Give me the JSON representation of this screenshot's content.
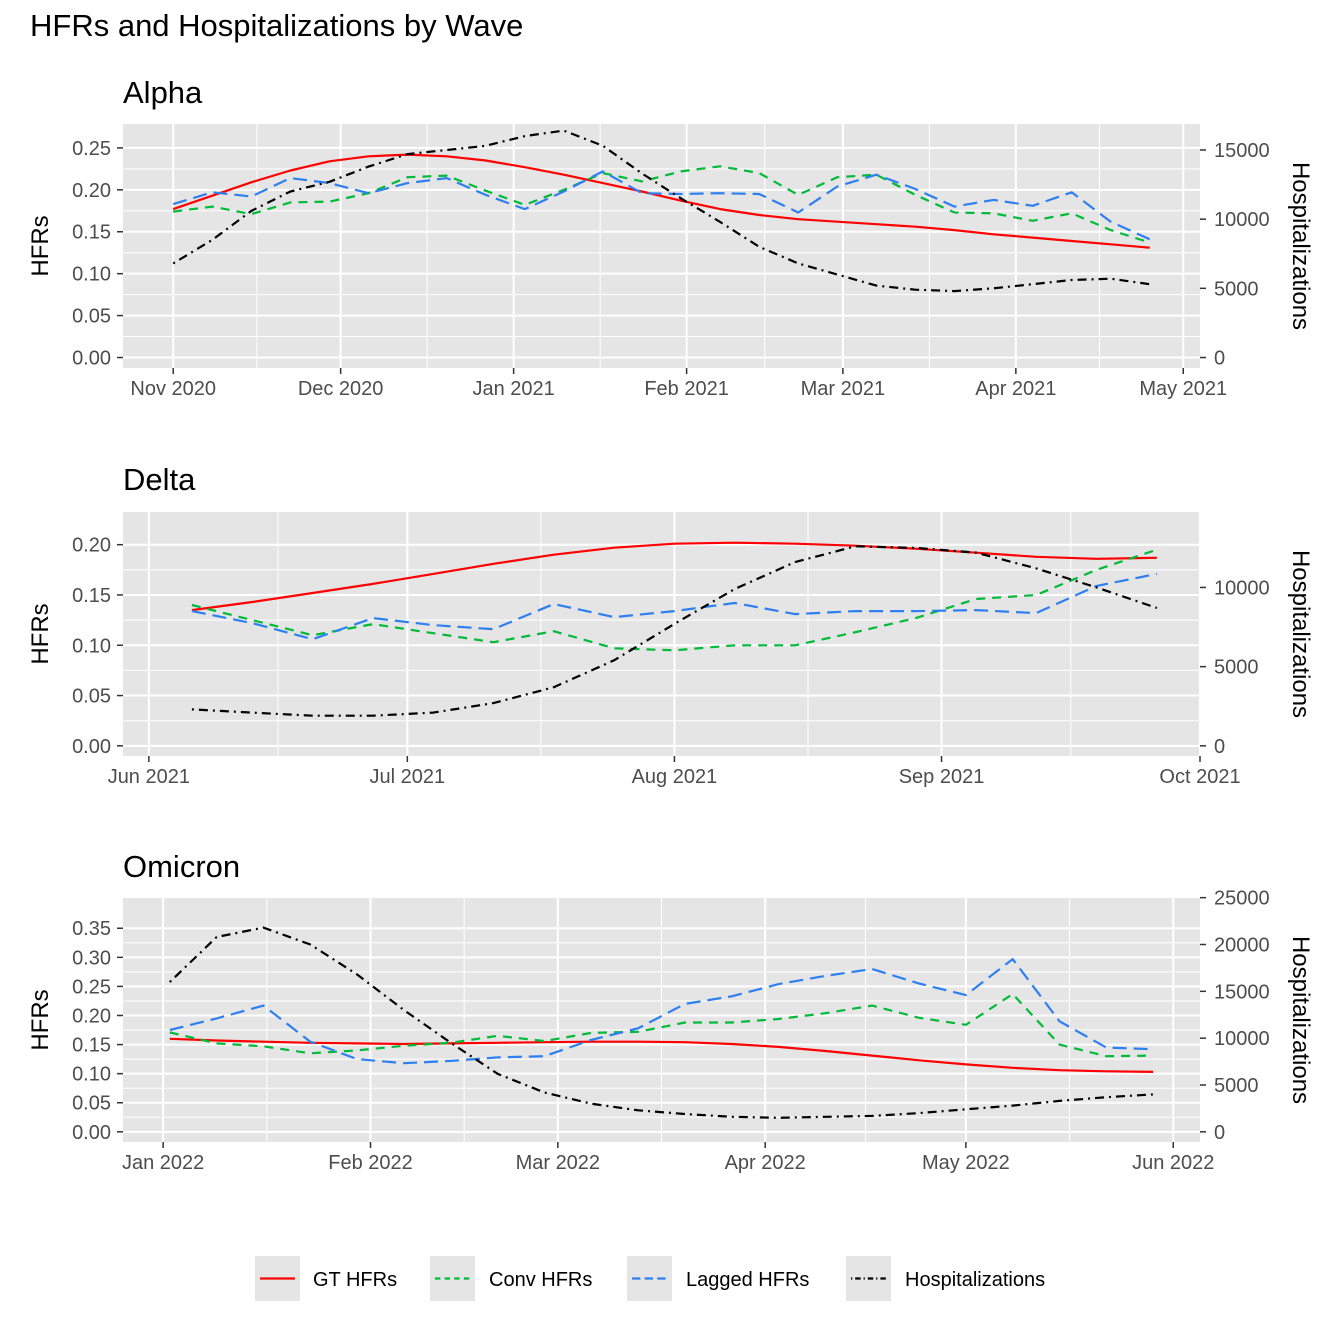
{
  "figure": {
    "title": "HFRs and Hospitalizations by Wave"
  },
  "chart_data": [
    {
      "type": "line",
      "title": "Alpha",
      "ylabel": "HFRs",
      "y2label": "Hospitalizations",
      "xlim": [
        "2020-10-23",
        "2021-05-04"
      ],
      "x_ticks": [
        {
          "date": "2020-11-01",
          "label": "Nov 2020"
        },
        {
          "date": "2020-12-01",
          "label": "Dec 2020"
        },
        {
          "date": "2021-01-01",
          "label": "Jan 2021"
        },
        {
          "date": "2021-02-01",
          "label": "Feb 2021"
        },
        {
          "date": "2021-03-01",
          "label": "Mar 2021"
        },
        {
          "date": "2021-04-01",
          "label": "Apr 2021"
        },
        {
          "date": "2021-05-01",
          "label": "May 2021"
        }
      ],
      "ylim": [
        -0.0125,
        0.2785
      ],
      "y_ticks": [
        {
          "value": 0,
          "label": "0.00"
        },
        {
          "value": 0.05,
          "label": "0.05"
        },
        {
          "value": 0.1,
          "label": "0.10"
        },
        {
          "value": 0.15,
          "label": "0.15"
        },
        {
          "value": 0.2,
          "label": "0.20"
        },
        {
          "value": 0.25,
          "label": "0.25"
        }
      ],
      "y2_per_y": 60600,
      "y2_ticks": [
        {
          "value": 0,
          "label": "0"
        },
        {
          "value": 5000,
          "label": "5000"
        },
        {
          "value": 10000,
          "label": "10000"
        },
        {
          "value": 15000,
          "label": "15000"
        }
      ],
      "series": [
        {
          "name": "GT HFRs",
          "axis": "left",
          "color": "#ff0000",
          "dash": "",
          "x": [
            "2020-11-01",
            "2020-11-08",
            "2020-11-15",
            "2020-11-22",
            "2020-11-29",
            "2020-12-06",
            "2020-12-13",
            "2020-12-20",
            "2020-12-27",
            "2021-01-03",
            "2021-01-10",
            "2021-01-17",
            "2021-01-24",
            "2021-01-31",
            "2021-02-07",
            "2021-02-14",
            "2021-02-21",
            "2021-02-28",
            "2021-03-07",
            "2021-03-14",
            "2021-03-21",
            "2021-03-28",
            "2021-04-04",
            "2021-04-11",
            "2021-04-18",
            "2021-04-25"
          ],
          "y": [
            0.177,
            0.193,
            0.209,
            0.223,
            0.234,
            0.24,
            0.242,
            0.24,
            0.235,
            0.227,
            0.218,
            0.208,
            0.198,
            0.187,
            0.177,
            0.17,
            0.165,
            0.162,
            0.159,
            0.156,
            0.152,
            0.147,
            0.143,
            0.139,
            0.135,
            0.131
          ]
        },
        {
          "name": "Conv HFRs",
          "axis": "left",
          "color": "#00ba38",
          "dash": "9 7",
          "x": [
            "2020-11-01",
            "2020-11-08",
            "2020-11-15",
            "2020-11-22",
            "2020-11-29",
            "2020-12-06",
            "2020-12-13",
            "2020-12-20",
            "2020-12-27",
            "2021-01-03",
            "2021-01-10",
            "2021-01-17",
            "2021-01-24",
            "2021-01-31",
            "2021-02-07",
            "2021-02-14",
            "2021-02-21",
            "2021-02-28",
            "2021-03-07",
            "2021-03-14",
            "2021-03-21",
            "2021-03-28",
            "2021-04-04",
            "2021-04-11",
            "2021-04-18",
            "2021-04-25"
          ],
          "y": [
            0.174,
            0.18,
            0.171,
            0.185,
            0.186,
            0.196,
            0.215,
            0.217,
            0.199,
            0.182,
            0.2,
            0.22,
            0.21,
            0.222,
            0.228,
            0.22,
            0.194,
            0.215,
            0.218,
            0.194,
            0.173,
            0.172,
            0.163,
            0.172,
            0.152,
            0.137
          ]
        },
        {
          "name": "Lagged HFRs",
          "axis": "left",
          "color": "#2e7ff0",
          "dash": "14 7",
          "x": [
            "2020-11-01",
            "2020-11-08",
            "2020-11-15",
            "2020-11-22",
            "2020-11-29",
            "2020-12-06",
            "2020-12-13",
            "2020-12-20",
            "2020-12-27",
            "2021-01-03",
            "2021-01-10",
            "2021-01-17",
            "2021-01-24",
            "2021-01-31",
            "2021-02-07",
            "2021-02-14",
            "2021-02-21",
            "2021-02-28",
            "2021-03-07",
            "2021-03-14",
            "2021-03-21",
            "2021-03-28",
            "2021-04-04",
            "2021-04-11",
            "2021-04-18",
            "2021-04-25"
          ],
          "y": [
            0.183,
            0.197,
            0.192,
            0.214,
            0.208,
            0.196,
            0.208,
            0.214,
            0.194,
            0.177,
            0.198,
            0.222,
            0.196,
            0.195,
            0.196,
            0.195,
            0.173,
            0.204,
            0.218,
            0.201,
            0.18,
            0.188,
            0.181,
            0.197,
            0.162,
            0.141
          ]
        },
        {
          "name": "Hospitalizations",
          "axis": "right",
          "color": "#000000",
          "dash": "2 5 9 5",
          "x": [
            "2020-11-01",
            "2020-11-08",
            "2020-11-15",
            "2020-11-22",
            "2020-11-29",
            "2020-12-06",
            "2020-12-13",
            "2020-12-20",
            "2020-12-27",
            "2021-01-03",
            "2021-01-10",
            "2021-01-17",
            "2021-01-24",
            "2021-01-31",
            "2021-02-07",
            "2021-02-14",
            "2021-02-21",
            "2021-02-28",
            "2021-03-07",
            "2021-03-14",
            "2021-03-21",
            "2021-03-28",
            "2021-04-04",
            "2021-04-11",
            "2021-04-18",
            "2021-04-25"
          ],
          "y": [
            6800,
            8500,
            10600,
            12000,
            12700,
            13800,
            14700,
            15000,
            15300,
            16000,
            16400,
            15300,
            13300,
            11500,
            9800,
            8000,
            6800,
            6000,
            5200,
            4900,
            4800,
            5000,
            5300,
            5600,
            5700,
            5300
          ]
        }
      ]
    },
    {
      "type": "line",
      "title": "Delta",
      "ylabel": "HFRs",
      "y2label": "Hospitalizations",
      "xlim": [
        "2021-05-29",
        "2021-10-01"
      ],
      "x_ticks": [
        {
          "date": "2021-06-01",
          "label": "Jun 2021"
        },
        {
          "date": "2021-07-01",
          "label": "Jul 2021"
        },
        {
          "date": "2021-08-01",
          "label": "Aug 2021"
        },
        {
          "date": "2021-09-01",
          "label": "Sep 2021"
        },
        {
          "date": "2021-10-01",
          "label": "Oct 2021"
        }
      ],
      "ylim": [
        -0.0101,
        0.2325
      ],
      "y_ticks": [
        {
          "value": 0,
          "label": "0.00"
        },
        {
          "value": 0.05,
          "label": "0.05"
        },
        {
          "value": 0.1,
          "label": "0.10"
        },
        {
          "value": 0.15,
          "label": "0.15"
        },
        {
          "value": 0.2,
          "label": "0.20"
        }
      ],
      "y2_per_y": 63500,
      "y2_ticks": [
        {
          "value": 0,
          "label": "0"
        },
        {
          "value": 5000,
          "label": "5000"
        },
        {
          "value": 10000,
          "label": "10000"
        }
      ],
      "series": [
        {
          "name": "GT HFRs",
          "axis": "left",
          "color": "#ff0000",
          "dash": "",
          "x": [
            "2021-06-06",
            "2021-06-13",
            "2021-06-20",
            "2021-06-27",
            "2021-07-04",
            "2021-07-11",
            "2021-07-18",
            "2021-07-25",
            "2021-08-01",
            "2021-08-08",
            "2021-08-15",
            "2021-08-22",
            "2021-08-29",
            "2021-09-05",
            "2021-09-12",
            "2021-09-19",
            "2021-09-26"
          ],
          "y": [
            0.135,
            0.143,
            0.152,
            0.161,
            0.171,
            0.181,
            0.19,
            0.197,
            0.201,
            0.202,
            0.201,
            0.199,
            0.196,
            0.192,
            0.188,
            0.186,
            0.187
          ]
        },
        {
          "name": "Conv HFRs",
          "axis": "left",
          "color": "#00ba38",
          "dash": "9 7",
          "x": [
            "2021-06-06",
            "2021-06-13",
            "2021-06-20",
            "2021-06-27",
            "2021-07-04",
            "2021-07-11",
            "2021-07-18",
            "2021-07-25",
            "2021-08-01",
            "2021-08-08",
            "2021-08-15",
            "2021-08-22",
            "2021-08-29",
            "2021-09-05",
            "2021-09-12",
            "2021-09-19",
            "2021-09-26"
          ],
          "y": [
            0.14,
            0.125,
            0.11,
            0.121,
            0.112,
            0.103,
            0.114,
            0.097,
            0.095,
            0.1,
            0.1,
            0.113,
            0.127,
            0.146,
            0.15,
            0.175,
            0.195
          ]
        },
        {
          "name": "Lagged HFRs",
          "axis": "left",
          "color": "#2e7ff0",
          "dash": "14 7",
          "x": [
            "2021-06-06",
            "2021-06-13",
            "2021-06-20",
            "2021-06-27",
            "2021-07-04",
            "2021-07-11",
            "2021-07-18",
            "2021-07-25",
            "2021-08-01",
            "2021-08-08",
            "2021-08-15",
            "2021-08-22",
            "2021-08-29",
            "2021-09-05",
            "2021-09-12",
            "2021-09-19",
            "2021-09-26"
          ],
          "y": [
            0.134,
            0.122,
            0.106,
            0.127,
            0.12,
            0.116,
            0.141,
            0.128,
            0.134,
            0.142,
            0.131,
            0.134,
            0.134,
            0.135,
            0.132,
            0.159,
            0.171
          ]
        },
        {
          "name": "Hospitalizations",
          "axis": "right",
          "color": "#000000",
          "dash": "2 5 9 5",
          "x": [
            "2021-06-06",
            "2021-06-13",
            "2021-06-20",
            "2021-06-27",
            "2021-07-04",
            "2021-07-11",
            "2021-07-18",
            "2021-07-25",
            "2021-08-01",
            "2021-08-08",
            "2021-08-15",
            "2021-08-22",
            "2021-08-29",
            "2021-09-05",
            "2021-09-12",
            "2021-09-19",
            "2021-09-26"
          ],
          "y": [
            2300,
            2100,
            1900,
            1900,
            2100,
            2700,
            3700,
            5400,
            7700,
            9900,
            11600,
            12600,
            12500,
            12200,
            11200,
            10000,
            8700
          ]
        }
      ]
    },
    {
      "type": "line",
      "title": "Omicron",
      "ylabel": "HFRs",
      "y2label": "Hospitalizations",
      "xlim": [
        "2021-12-26",
        "2022-06-05"
      ],
      "x_ticks": [
        {
          "date": "2022-01-01",
          "label": "Jan 2022"
        },
        {
          "date": "2022-02-01",
          "label": "Feb 2022"
        },
        {
          "date": "2022-03-01",
          "label": "Mar 2022"
        },
        {
          "date": "2022-04-01",
          "label": "Apr 2022"
        },
        {
          "date": "2022-05-01",
          "label": "May 2022"
        },
        {
          "date": "2022-06-01",
          "label": "Jun 2022"
        }
      ],
      "ylim": [
        -0.0175,
        0.402
      ],
      "y_ticks": [
        {
          "value": 0,
          "label": "0.00"
        },
        {
          "value": 0.05,
          "label": "0.05"
        },
        {
          "value": 0.1,
          "label": "0.10"
        },
        {
          "value": 0.15,
          "label": "0.15"
        },
        {
          "value": 0.2,
          "label": "0.20"
        },
        {
          "value": 0.25,
          "label": "0.25"
        },
        {
          "value": 0.3,
          "label": "0.30"
        },
        {
          "value": 0.35,
          "label": "0.35"
        }
      ],
      "y2_per_y": 62100,
      "y2_ticks": [
        {
          "value": 0,
          "label": "0"
        },
        {
          "value": 5000,
          "label": "5000"
        },
        {
          "value": 10000,
          "label": "10000"
        },
        {
          "value": 15000,
          "label": "15000"
        },
        {
          "value": 20000,
          "label": "20000"
        },
        {
          "value": 25000,
          "label": "25000"
        }
      ],
      "series": [
        {
          "name": "GT HFRs",
          "axis": "left",
          "color": "#ff0000",
          "dash": "",
          "x": [
            "2022-01-02",
            "2022-01-09",
            "2022-01-16",
            "2022-01-23",
            "2022-01-30",
            "2022-02-06",
            "2022-02-13",
            "2022-02-20",
            "2022-02-27",
            "2022-03-06",
            "2022-03-13",
            "2022-03-20",
            "2022-03-27",
            "2022-04-03",
            "2022-04-10",
            "2022-04-17",
            "2022-04-24",
            "2022-05-01",
            "2022-05-08",
            "2022-05-15",
            "2022-05-22",
            "2022-05-29"
          ],
          "y": [
            0.16,
            0.157,
            0.155,
            0.153,
            0.152,
            0.151,
            0.152,
            0.153,
            0.154,
            0.155,
            0.155,
            0.154,
            0.151,
            0.146,
            0.139,
            0.131,
            0.123,
            0.116,
            0.11,
            0.106,
            0.104,
            0.103
          ]
        },
        {
          "name": "Conv HFRs",
          "axis": "left",
          "color": "#00ba38",
          "dash": "9 7",
          "x": [
            "2022-01-02",
            "2022-01-09",
            "2022-01-16",
            "2022-01-23",
            "2022-01-30",
            "2022-02-06",
            "2022-02-13",
            "2022-02-20",
            "2022-02-27",
            "2022-03-06",
            "2022-03-13",
            "2022-03-20",
            "2022-03-27",
            "2022-04-03",
            "2022-04-10",
            "2022-04-17",
            "2022-04-24",
            "2022-05-01",
            "2022-05-08",
            "2022-05-15",
            "2022-05-22",
            "2022-05-29"
          ],
          "y": [
            0.171,
            0.152,
            0.147,
            0.135,
            0.14,
            0.148,
            0.153,
            0.165,
            0.156,
            0.17,
            0.172,
            0.188,
            0.188,
            0.194,
            0.204,
            0.217,
            0.196,
            0.184,
            0.237,
            0.15,
            0.13,
            0.131
          ]
        },
        {
          "name": "Lagged HFRs",
          "axis": "left",
          "color": "#2e7ff0",
          "dash": "14 7",
          "x": [
            "2022-01-02",
            "2022-01-09",
            "2022-01-16",
            "2022-01-23",
            "2022-01-30",
            "2022-02-06",
            "2022-02-13",
            "2022-02-20",
            "2022-02-27",
            "2022-03-06",
            "2022-03-13",
            "2022-03-20",
            "2022-03-27",
            "2022-04-03",
            "2022-04-10",
            "2022-04-17",
            "2022-04-24",
            "2022-05-01",
            "2022-05-08",
            "2022-05-15",
            "2022-05-22",
            "2022-05-29"
          ],
          "y": [
            0.175,
            0.195,
            0.217,
            0.155,
            0.125,
            0.118,
            0.122,
            0.128,
            0.13,
            0.158,
            0.178,
            0.22,
            0.233,
            0.254,
            0.268,
            0.28,
            0.255,
            0.235,
            0.297,
            0.19,
            0.145,
            0.142
          ]
        },
        {
          "name": "Hospitalizations",
          "axis": "right",
          "color": "#000000",
          "dash": "2 5 9 5",
          "x": [
            "2022-01-02",
            "2022-01-09",
            "2022-01-16",
            "2022-01-23",
            "2022-01-30",
            "2022-02-06",
            "2022-02-13",
            "2022-02-20",
            "2022-02-27",
            "2022-03-06",
            "2022-03-13",
            "2022-03-20",
            "2022-03-27",
            "2022-04-03",
            "2022-04-10",
            "2022-04-17",
            "2022-04-24",
            "2022-05-01",
            "2022-05-08",
            "2022-05-15",
            "2022-05-22",
            "2022-05-29"
          ],
          "y": [
            16000,
            20800,
            21800,
            20000,
            16800,
            13000,
            9500,
            6200,
            4200,
            3000,
            2300,
            1900,
            1600,
            1500,
            1600,
            1700,
            2000,
            2400,
            2800,
            3300,
            3700,
            4000
          ]
        }
      ]
    }
  ],
  "legend": {
    "position": "bottom",
    "items": [
      {
        "label": "GT HFRs",
        "color": "#ff0000",
        "dash": ""
      },
      {
        "label": "Conv HFRs",
        "color": "#00ba38",
        "dash": "9 7"
      },
      {
        "label": "Lagged HFRs",
        "color": "#2e7ff0",
        "dash": "14 7"
      },
      {
        "label": "Hospitalizations",
        "color": "#000000",
        "dash": "2 5 9 5"
      }
    ]
  },
  "colors": {
    "panel_background": "#e5e5e5",
    "grid": "#ffffff",
    "tick_text": "#4d4d4d"
  }
}
